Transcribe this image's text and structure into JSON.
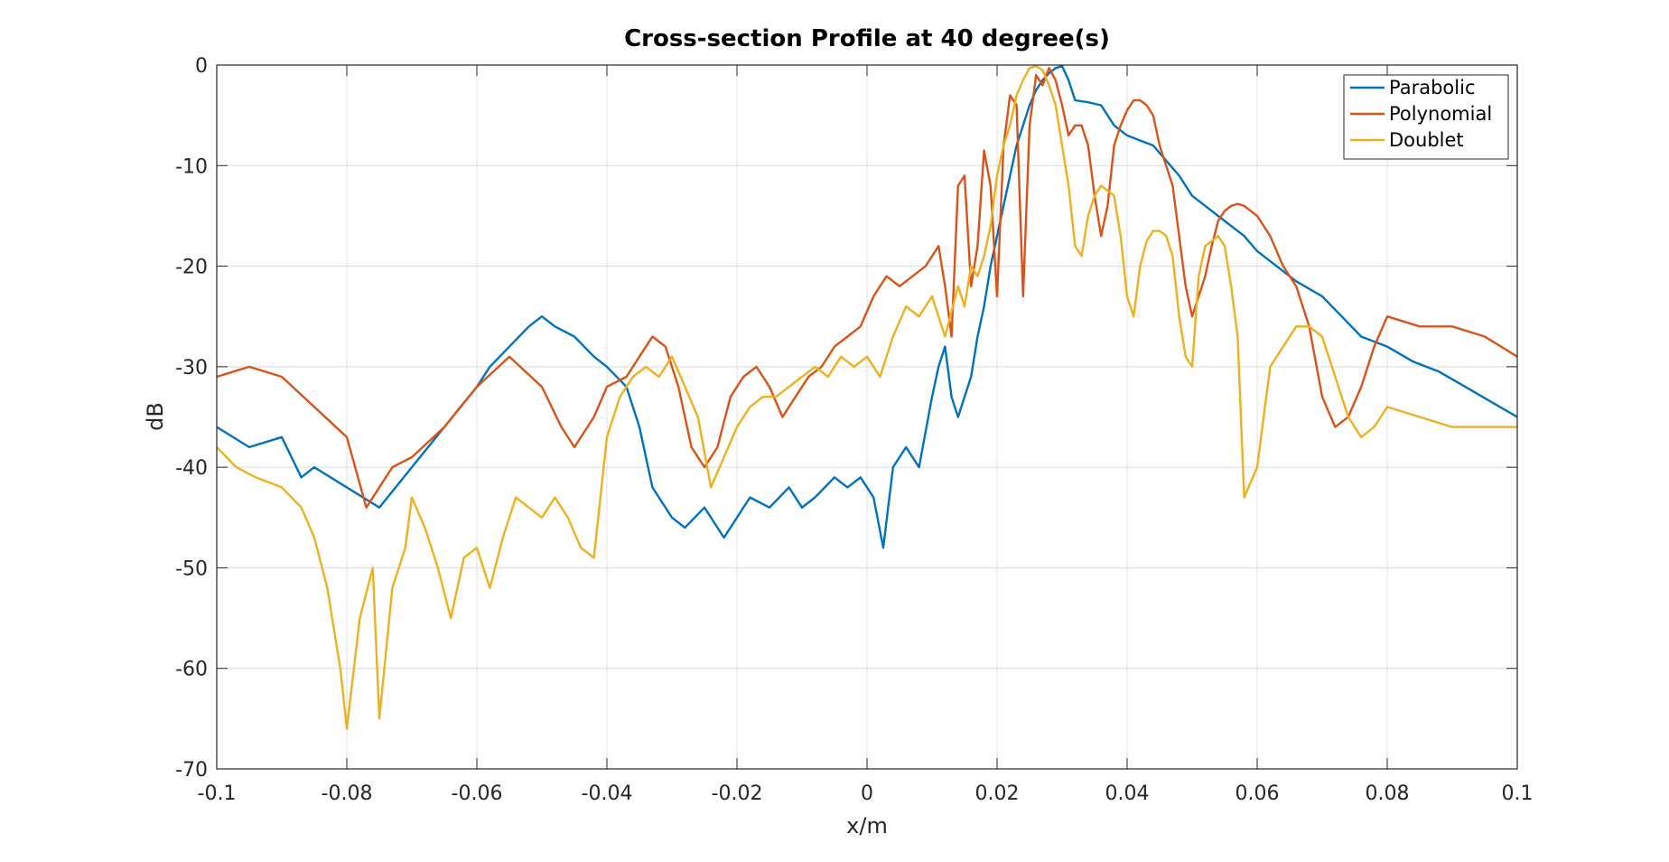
{
  "chart_data": {
    "type": "line",
    "title": "Cross-section Profile at 40 degree(s)",
    "xlabel": "x/m",
    "ylabel": "dB",
    "xlim": [
      -0.1,
      0.1
    ],
    "ylim": [
      -70,
      0
    ],
    "xticks": [
      -0.1,
      -0.08,
      -0.06,
      -0.04,
      -0.02,
      0,
      0.02,
      0.04,
      0.06,
      0.08,
      0.1
    ],
    "xtick_labels": [
      "-0.1",
      "-0.08",
      "-0.06",
      "-0.04",
      "-0.02",
      "0",
      "0.02",
      "0.04",
      "0.06",
      "0.08",
      "0.1"
    ],
    "yticks": [
      0,
      -10,
      -20,
      -30,
      -40,
      -50,
      -60,
      -70
    ],
    "ytick_labels": [
      "0",
      "-10",
      "-20",
      "-30",
      "-40",
      "-50",
      "-60",
      "-70"
    ],
    "grid": true,
    "legend_position": "top-right",
    "series": [
      {
        "name": "Parabolic",
        "color": "#0072BD",
        "x": [
          -0.1,
          -0.095,
          -0.09,
          -0.087,
          -0.085,
          -0.08,
          -0.075,
          -0.07,
          -0.065,
          -0.06,
          -0.058,
          -0.055,
          -0.052,
          -0.05,
          -0.048,
          -0.045,
          -0.042,
          -0.04,
          -0.037,
          -0.035,
          -0.033,
          -0.03,
          -0.028,
          -0.025,
          -0.022,
          -0.02,
          -0.018,
          -0.015,
          -0.012,
          -0.01,
          -0.008,
          -0.005,
          -0.003,
          -0.001,
          0.001,
          0.0025,
          0.004,
          0.006,
          0.008,
          0.01,
          0.011,
          0.012,
          0.013,
          0.014,
          0.015,
          0.016,
          0.017,
          0.018,
          0.019,
          0.02,
          0.021,
          0.022,
          0.023,
          0.024,
          0.025,
          0.026,
          0.027,
          0.028,
          0.029,
          0.03,
          0.031,
          0.032,
          0.034,
          0.036,
          0.038,
          0.04,
          0.042,
          0.044,
          0.046,
          0.048,
          0.05,
          0.052,
          0.055,
          0.058,
          0.06,
          0.063,
          0.066,
          0.07,
          0.073,
          0.076,
          0.08,
          0.084,
          0.088,
          0.092,
          0.096,
          0.1
        ],
        "y": [
          -36,
          -38,
          -37,
          -41,
          -40,
          -42,
          -44,
          -40,
          -36,
          -32,
          -30,
          -28,
          -26,
          -25,
          -26,
          -27,
          -29,
          -30,
          -32,
          -36,
          -42,
          -45,
          -46,
          -44,
          -47,
          -45,
          -43,
          -44,
          -42,
          -44,
          -43,
          -41,
          -42,
          -41,
          -43,
          -48,
          -40,
          -38,
          -40,
          -33,
          -30,
          -28,
          -33,
          -35,
          -33,
          -31,
          -27,
          -24,
          -20,
          -17,
          -14,
          -11,
          -8,
          -6,
          -4,
          -2.5,
          -1.5,
          -0.8,
          -0.3,
          -0.1,
          -1.5,
          -3.5,
          -3.7,
          -4,
          -6,
          -7,
          -7.5,
          -8,
          -9.5,
          -11,
          -13,
          -14,
          -15.5,
          -17,
          -18.5,
          -20,
          -21.5,
          -23,
          -25,
          -27,
          -28,
          -29.5,
          -30.5,
          -32,
          -33.5,
          -35
        ]
      },
      {
        "name": "Polynomial",
        "color": "#D95319",
        "x": [
          -0.1,
          -0.095,
          -0.09,
          -0.085,
          -0.08,
          -0.077,
          -0.073,
          -0.07,
          -0.065,
          -0.06,
          -0.055,
          -0.05,
          -0.047,
          -0.045,
          -0.042,
          -0.04,
          -0.037,
          -0.035,
          -0.033,
          -0.031,
          -0.029,
          -0.027,
          -0.025,
          -0.023,
          -0.021,
          -0.019,
          -0.017,
          -0.015,
          -0.013,
          -0.011,
          -0.009,
          -0.007,
          -0.005,
          -0.003,
          -0.001,
          0.001,
          0.003,
          0.005,
          0.007,
          0.009,
          0.011,
          0.012,
          0.013,
          0.014,
          0.015,
          0.016,
          0.017,
          0.018,
          0.019,
          0.02,
          0.021,
          0.022,
          0.023,
          0.024,
          0.025,
          0.026,
          0.027,
          0.028,
          0.029,
          0.03,
          0.031,
          0.032,
          0.033,
          0.034,
          0.035,
          0.036,
          0.037,
          0.038,
          0.039,
          0.04,
          0.041,
          0.042,
          0.043,
          0.044,
          0.045,
          0.046,
          0.047,
          0.048,
          0.049,
          0.05,
          0.051,
          0.052,
          0.053,
          0.054,
          0.055,
          0.056,
          0.057,
          0.058,
          0.06,
          0.062,
          0.064,
          0.066,
          0.068,
          0.07,
          0.072,
          0.074,
          0.076,
          0.078,
          0.08,
          0.085,
          0.09,
          0.095,
          0.1
        ],
        "y": [
          -31,
          -30,
          -31,
          -34,
          -37,
          -44,
          -40,
          -39,
          -36,
          -32,
          -29,
          -32,
          -36,
          -38,
          -35,
          -32,
          -31,
          -29,
          -27,
          -28,
          -32,
          -38,
          -40,
          -38,
          -33,
          -31,
          -30,
          -32,
          -35,
          -33,
          -31,
          -30,
          -28,
          -27,
          -26,
          -23,
          -21,
          -22,
          -21,
          -20,
          -18,
          -22,
          -27,
          -12,
          -11,
          -22,
          -18,
          -8.5,
          -12,
          -23,
          -8,
          -3,
          -4,
          -23,
          -6,
          -1,
          -2,
          -0.3,
          -1.5,
          -4,
          -7,
          -6,
          -6,
          -8,
          -13,
          -17,
          -14,
          -8,
          -6,
          -4.5,
          -3.5,
          -3.5,
          -4,
          -5,
          -8,
          -10,
          -12,
          -17,
          -22,
          -25,
          -23,
          -21,
          -18,
          -15.5,
          -14.5,
          -14,
          -13.8,
          -14,
          -15,
          -17,
          -20,
          -22,
          -26,
          -33,
          -36,
          -35,
          -32,
          -28,
          -25,
          -26,
          -26,
          -27,
          -29
        ]
      },
      {
        "name": "Doublet",
        "color": "#EDB120",
        "x": [
          -0.1,
          -0.097,
          -0.094,
          -0.09,
          -0.087,
          -0.085,
          -0.083,
          -0.081,
          -0.08,
          -0.078,
          -0.076,
          -0.075,
          -0.073,
          -0.071,
          -0.07,
          -0.068,
          -0.066,
          -0.064,
          -0.062,
          -0.06,
          -0.058,
          -0.056,
          -0.054,
          -0.052,
          -0.05,
          -0.048,
          -0.046,
          -0.044,
          -0.042,
          -0.04,
          -0.038,
          -0.036,
          -0.034,
          -0.032,
          -0.03,
          -0.028,
          -0.026,
          -0.024,
          -0.022,
          -0.02,
          -0.018,
          -0.016,
          -0.014,
          -0.012,
          -0.01,
          -0.008,
          -0.006,
          -0.004,
          -0.002,
          0,
          0.002,
          0.004,
          0.006,
          0.008,
          0.01,
          0.012,
          0.014,
          0.015,
          0.016,
          0.017,
          0.018,
          0.019,
          0.02,
          0.021,
          0.022,
          0.023,
          0.024,
          0.025,
          0.026,
          0.027,
          0.028,
          0.029,
          0.03,
          0.031,
          0.032,
          0.033,
          0.034,
          0.035,
          0.036,
          0.037,
          0.038,
          0.039,
          0.04,
          0.041,
          0.042,
          0.043,
          0.044,
          0.045,
          0.046,
          0.047,
          0.048,
          0.049,
          0.05,
          0.051,
          0.052,
          0.053,
          0.054,
          0.055,
          0.056,
          0.057,
          0.058,
          0.06,
          0.062,
          0.064,
          0.066,
          0.068,
          0.07,
          0.072,
          0.074,
          0.076,
          0.078,
          0.08,
          0.085,
          0.09,
          0.095,
          0.1
        ],
        "y": [
          -38,
          -40,
          -41,
          -42,
          -44,
          -47,
          -52,
          -60,
          -66,
          -55,
          -50,
          -65,
          -52,
          -48,
          -43,
          -46,
          -50,
          -55,
          -49,
          -48,
          -52,
          -47,
          -43,
          -44,
          -45,
          -43,
          -45,
          -48,
          -49,
          -37,
          -33,
          -31,
          -30,
          -31,
          -29,
          -32,
          -35,
          -42,
          -39,
          -36,
          -34,
          -33,
          -33,
          -32,
          -31,
          -30,
          -31,
          -29,
          -30,
          -29,
          -31,
          -27,
          -24,
          -25,
          -23,
          -27,
          -22,
          -24,
          -20,
          -21,
          -19,
          -16,
          -11,
          -8,
          -6,
          -3,
          -1.5,
          -0.3,
          -0.1,
          -0.5,
          -2,
          -4,
          -8,
          -12,
          -18,
          -19,
          -15,
          -13,
          -12,
          -12.5,
          -13,
          -17,
          -23,
          -25,
          -20,
          -17.5,
          -16.5,
          -16.5,
          -17,
          -19,
          -25,
          -29,
          -30,
          -21,
          -18,
          -17.5,
          -17,
          -18,
          -22,
          -27,
          -43,
          -40,
          -30,
          -28,
          -26,
          -26,
          -27,
          -31,
          -35,
          -37,
          -36,
          -34,
          -35,
          -36,
          -36,
          -36
        ]
      }
    ]
  }
}
